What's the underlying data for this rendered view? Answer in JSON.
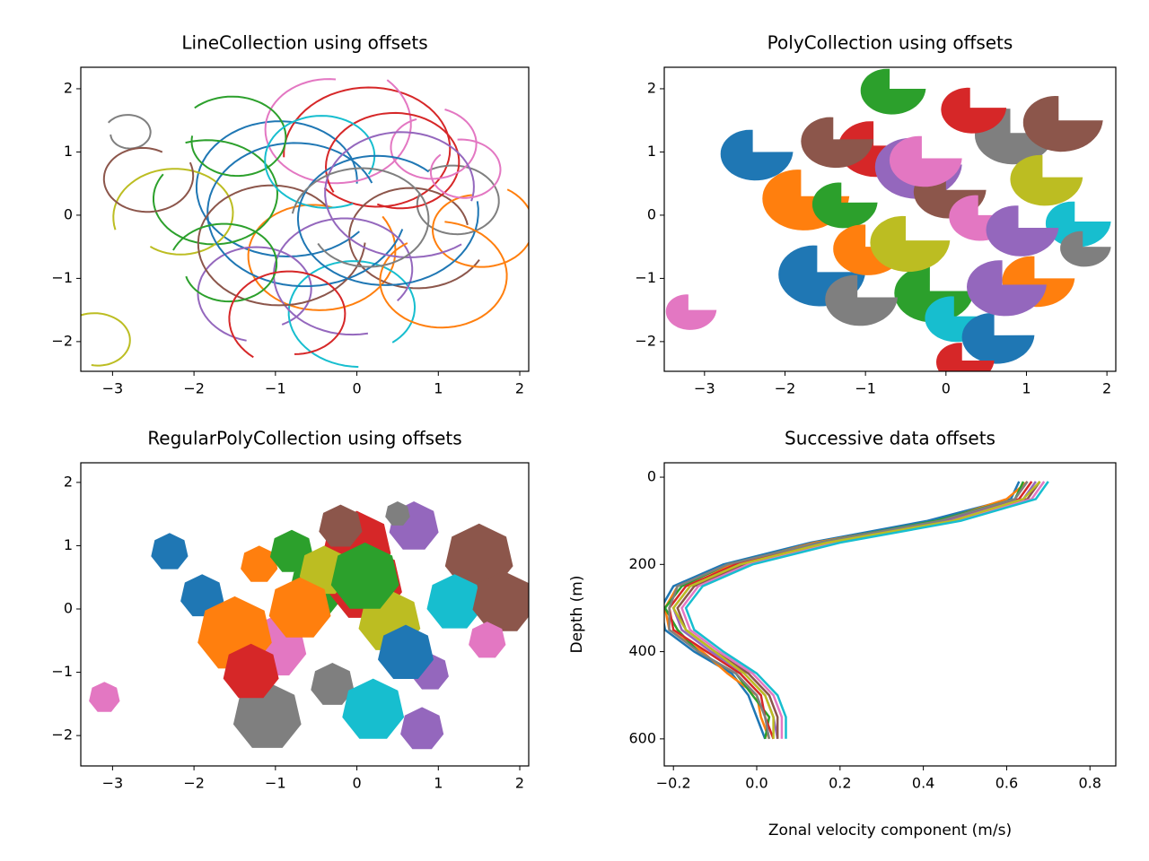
{
  "chart_data": [
    {
      "type": "scatter",
      "marker": "arc",
      "title": "LineCollection using offsets",
      "colors": [
        "#1f77b4",
        "#ff7f0e",
        "#2ca02c",
        "#d62728",
        "#9467bd",
        "#8c564b",
        "#e377c2",
        "#7f7f7f",
        "#bcbd22",
        "#17becf"
      ],
      "x": [
        -0.9,
        -0.5,
        -1.8,
        0.2,
        -1.2,
        0.7,
        -0.3,
        1.2,
        -2.2,
        0.0,
        -0.7,
        1.5,
        -1.5,
        0.5,
        -0.1,
        -1.0,
        0.9,
        -2.8,
        -3.2,
        -0.4,
        0.3,
        1.0,
        -1.6,
        -0.8,
        0.6,
        -2.6,
        1.3,
        0.1
      ],
      "y": [
        0.5,
        -0.6,
        0.3,
        1.0,
        -1.2,
        -0.3,
        1.4,
        0.2,
        0.0,
        -1.5,
        0.1,
        -0.2,
        1.2,
        0.8,
        -0.9,
        -0.4,
        1.1,
        1.3,
        -2.0,
        0.9,
        0.0,
        -1.0,
        -0.8,
        -1.6,
        0.4,
        0.6,
        0.7,
        -0.1
      ],
      "sizes": [
        1.2,
        1.0,
        0.9,
        1.1,
        0.8,
        0.9,
        1.0,
        0.6,
        0.8,
        0.9,
        1.3,
        0.7,
        0.7,
        0.9,
        1.0,
        1.1,
        0.6,
        0.3,
        0.5,
        0.8,
        1.2,
        0.9,
        0.7,
        0.8,
        1.1,
        0.6,
        0.5,
        0.9
      ],
      "xlim": [
        -3.39,
        2.11
      ],
      "ylim": [
        -2.47,
        2.34
      ],
      "xticks": [
        {
          "value": -3,
          "label": "−3"
        },
        {
          "value": -2,
          "label": "−2"
        },
        {
          "value": -1,
          "label": "−1"
        },
        0,
        1,
        2
      ],
      "yticks": [
        {
          "value": -2,
          "label": "−2"
        },
        {
          "value": -1,
          "label": "−1"
        },
        0,
        1,
        2
      ]
    },
    {
      "type": "scatter",
      "marker": "wedge",
      "title": "PolyCollection using offsets",
      "colors": [
        "#1f77b4",
        "#ff7f0e",
        "#2ca02c",
        "#d62728",
        "#9467bd",
        "#8c564b",
        "#e377c2",
        "#7f7f7f",
        "#bcbd22",
        "#17becf"
      ],
      "x": [
        -2.4,
        -1.8,
        -1.3,
        -0.9,
        -0.4,
        0.0,
        0.4,
        0.8,
        1.2,
        1.6,
        -1.6,
        -1.0,
        -0.2,
        0.3,
        0.9,
        1.4,
        -3.2,
        -1.1,
        -0.5,
        0.1,
        0.6,
        1.1,
        -0.7,
        0.2,
        0.7,
        -1.4,
        -0.3,
        1.7
      ],
      "y": [
        1.0,
        0.3,
        0.2,
        1.1,
        0.8,
        0.4,
        0.0,
        1.3,
        0.6,
        -0.1,
        -0.9,
        -0.5,
        -1.2,
        1.7,
        -0.2,
        1.5,
        -1.5,
        -1.3,
        -0.4,
        -1.6,
        -1.9,
        -1.0,
        2.0,
        -2.3,
        -1.1,
        1.2,
        0.9,
        -0.5
      ],
      "sizes": [
        0.5,
        0.6,
        0.45,
        0.55,
        0.6,
        0.5,
        0.45,
        0.55,
        0.5,
        0.45,
        0.6,
        0.5,
        0.55,
        0.45,
        0.5,
        0.55,
        0.35,
        0.5,
        0.55,
        0.45,
        0.5,
        0.5,
        0.45,
        0.4,
        0.55,
        0.5,
        0.5,
        0.35
      ],
      "xlim": [
        -3.5,
        2.11
      ],
      "ylim": [
        -2.47,
        2.34
      ],
      "xticks": [
        {
          "value": -3,
          "label": "−3"
        },
        {
          "value": -2,
          "label": "−2"
        },
        {
          "value": -1,
          "label": "−1"
        },
        0,
        1,
        2
      ],
      "yticks": [
        {
          "value": -2,
          "label": "−2"
        },
        {
          "value": -1,
          "label": "−1"
        },
        0,
        1,
        2
      ]
    },
    {
      "type": "scatter",
      "marker": "heptagon",
      "title": "RegularPolyCollection using offsets",
      "colors": [
        "#1f77b4",
        "#ff7f0e",
        "#2ca02c",
        "#d62728",
        "#9467bd",
        "#8c564b",
        "#e377c2",
        "#7f7f7f",
        "#bcbd22",
        "#17becf"
      ],
      "x": [
        -1.9,
        -1.2,
        -0.5,
        0.1,
        0.7,
        1.5,
        -1.0,
        -0.3,
        0.4,
        1.2,
        -2.3,
        -1.5,
        -0.8,
        0.0,
        0.9,
        1.8,
        -3.1,
        -1.1,
        -0.4,
        0.2,
        0.6,
        -0.7,
        0.1,
        -1.3,
        0.8,
        -0.2,
        1.6,
        0.5
      ],
      "y": [
        0.2,
        0.7,
        0.3,
        0.4,
        1.3,
        0.8,
        -0.6,
        -1.2,
        -0.2,
        0.1,
        0.9,
        -0.4,
        0.9,
        1.0,
        -1.0,
        0.1,
        -1.4,
        -1.7,
        0.6,
        -1.6,
        -0.7,
        0.0,
        0.5,
        -1.0,
        -1.9,
        1.3,
        -0.5,
        1.5
      ],
      "sizes": [
        0.35,
        0.3,
        0.45,
        0.6,
        0.4,
        0.55,
        0.5,
        0.35,
        0.5,
        0.45,
        0.3,
        0.6,
        0.35,
        0.55,
        0.3,
        0.5,
        0.25,
        0.55,
        0.4,
        0.5,
        0.45,
        0.5,
        0.55,
        0.45,
        0.35,
        0.35,
        0.3,
        0.2
      ],
      "xlim": [
        -3.39,
        2.11
      ],
      "ylim": [
        -2.48,
        2.31
      ],
      "xticks": [
        {
          "value": -3,
          "label": "−3"
        },
        {
          "value": -2,
          "label": "−2"
        },
        {
          "value": -1,
          "label": "−1"
        },
        0,
        1,
        2
      ],
      "yticks": [
        {
          "value": -2,
          "label": "−2"
        },
        {
          "value": -1,
          "label": "−1"
        },
        0,
        1,
        2
      ]
    },
    {
      "type": "line",
      "title": "Successive data offsets",
      "xlabel": "Zonal velocity component (m/s)",
      "ylabel": "Depth (m)",
      "y": [
        10,
        50,
        100,
        150,
        200,
        250,
        300,
        350,
        400,
        450,
        500,
        550,
        600
      ],
      "series": [
        {
          "color": "#1f77b4",
          "values": [
            0.63,
            0.61,
            0.41,
            0.13,
            -0.08,
            -0.2,
            -0.23,
            -0.22,
            -0.15,
            -0.06,
            -0.02,
            0.0,
            0.02
          ]
        },
        {
          "color": "#ff7f0e",
          "values": [
            0.65,
            0.6,
            0.44,
            0.14,
            -0.06,
            -0.19,
            -0.22,
            -0.21,
            -0.13,
            -0.07,
            0.0,
            0.01,
            0.03
          ]
        },
        {
          "color": "#2ca02c",
          "values": [
            0.64,
            0.62,
            0.43,
            0.15,
            -0.07,
            -0.18,
            -0.22,
            -0.19,
            -0.14,
            -0.05,
            -0.01,
            0.03,
            0.02
          ]
        },
        {
          "color": "#d62728",
          "values": [
            0.66,
            0.63,
            0.45,
            0.16,
            -0.05,
            -0.17,
            -0.21,
            -0.2,
            -0.12,
            -0.04,
            0.01,
            0.02,
            0.04
          ]
        },
        {
          "color": "#9467bd",
          "values": [
            0.67,
            0.64,
            0.46,
            0.18,
            -0.04,
            -0.16,
            -0.2,
            -0.18,
            -0.11,
            -0.03,
            0.02,
            0.04,
            0.05
          ]
        },
        {
          "color": "#8c564b",
          "values": [
            0.68,
            0.65,
            0.47,
            0.18,
            -0.03,
            -0.15,
            -0.19,
            -0.17,
            -0.1,
            -0.02,
            0.03,
            0.05,
            0.05
          ]
        },
        {
          "color": "#e377c2",
          "values": [
            0.69,
            0.66,
            0.48,
            0.19,
            -0.02,
            -0.14,
            -0.18,
            -0.16,
            -0.09,
            -0.01,
            0.04,
            0.06,
            0.06
          ]
        },
        {
          "color": "#7f7f7f",
          "values": [
            0.65,
            0.62,
            0.44,
            0.15,
            -0.07,
            -0.19,
            -0.21,
            -0.21,
            -0.14,
            -0.05,
            0.0,
            0.02,
            0.03
          ]
        },
        {
          "color": "#bcbd22",
          "values": [
            0.68,
            0.64,
            0.47,
            0.17,
            -0.04,
            -0.16,
            -0.2,
            -0.17,
            -0.1,
            -0.03,
            0.02,
            0.04,
            0.04
          ]
        },
        {
          "color": "#17becf",
          "values": [
            0.7,
            0.67,
            0.49,
            0.2,
            -0.01,
            -0.13,
            -0.17,
            -0.15,
            -0.08,
            0.0,
            0.05,
            0.07,
            0.07
          ]
        }
      ],
      "xlim": [
        -0.222,
        0.862
      ],
      "ylim": [
        662,
        -33
      ],
      "xticks": [
        {
          "value": -0.2,
          "label": "−0.2"
        },
        {
          "value": 0,
          "label": "0.0"
        },
        {
          "value": 0.2,
          "label": "0.2"
        },
        {
          "value": 0.4,
          "label": "0.4"
        },
        {
          "value": 0.6,
          "label": "0.6"
        },
        {
          "value": 0.8,
          "label": "0.8"
        }
      ],
      "yticks": [
        0,
        200,
        400,
        600
      ]
    }
  ]
}
